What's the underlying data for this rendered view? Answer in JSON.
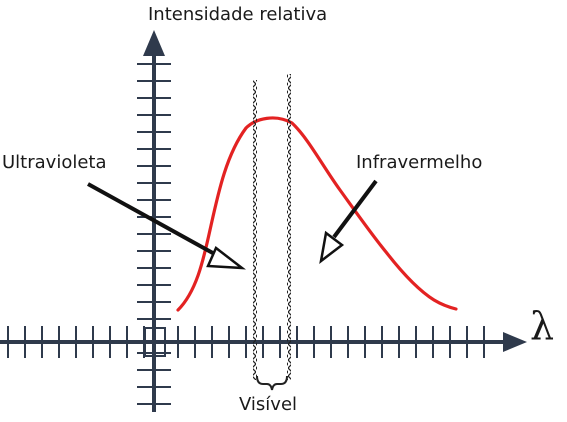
{
  "labels": {
    "y_axis": "Intensidade relativa",
    "x_axis": "λ",
    "ultraviolet": "Ultravioleta",
    "infrared": "Infravermelho",
    "visible": "Visível"
  },
  "colors": {
    "axis": "#2f3a4c",
    "curve": "#e32222",
    "arrow": "#111111",
    "band": "#222222",
    "text": "#1a1a1a"
  }
}
